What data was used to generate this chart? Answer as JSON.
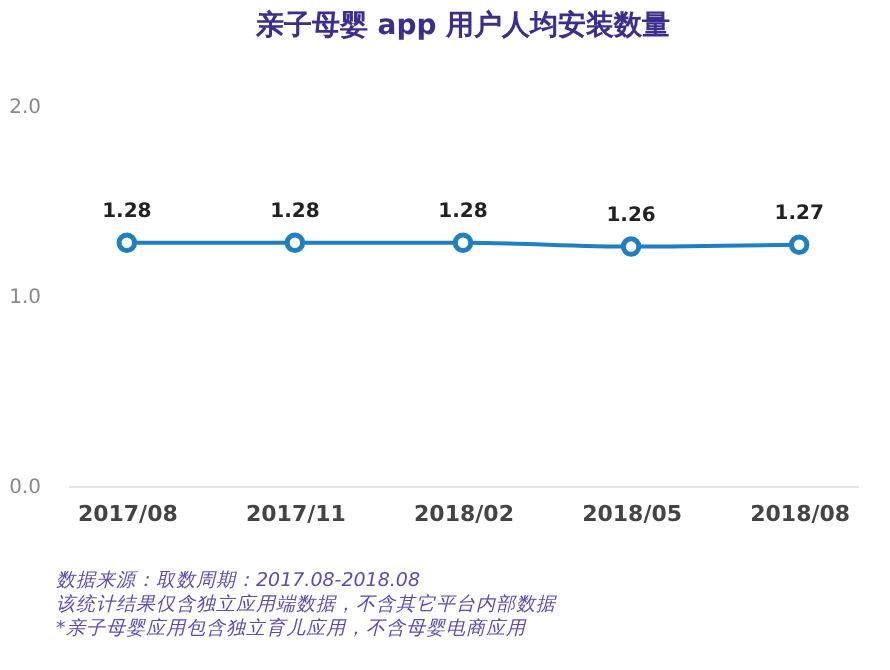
{
  "chart_data": {
    "type": "line",
    "title": "亲子母婴 app 用户人均安装数量",
    "categories": [
      "2017/08",
      "2017/11",
      "2018/02",
      "2018/05",
      "2018/08"
    ],
    "series": [
      {
        "color": "#1f7fc0",
        "values": [
          1.28,
          1.28,
          1.28,
          1.26,
          1.27
        ]
      }
    ],
    "ylim": [
      0,
      2
    ],
    "yticks": [
      {
        "value": 0,
        "label": "0.0"
      },
      {
        "value": 1,
        "label": "1.0"
      },
      {
        "value": 2,
        "label": "2.0"
      }
    ],
    "data_labels": true,
    "marker": "circle",
    "line_style": "solid",
    "grid": false,
    "legend": false,
    "annotations": [
      "数据来源：取数周期：2017.08-2018.08",
      "该统计结果仅含独立应用端数据，不含其它平台内部数据",
      "*亲子母婴应用包含独立育儿应用，不含母婴电商应用"
    ]
  }
}
